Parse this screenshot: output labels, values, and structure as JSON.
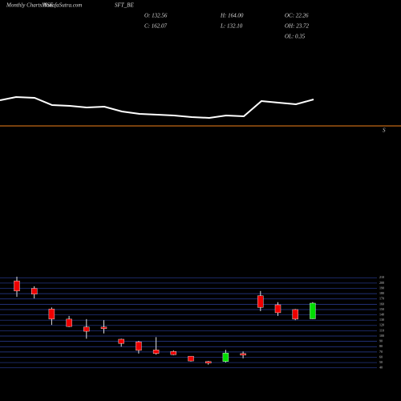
{
  "chart_data": {
    "type": "candlestick",
    "title": "Monthly Charts NSE",
    "site": "MunafaSutra.com",
    "symbol": "SFT_BE",
    "stats": [
      "O: 132.56",
      "C: 162.07",
      "H: 164.00",
      "L: 132.10",
      "OC: 22.26",
      "OH: 23.72",
      "OL: 0.35"
    ],
    "line_label": "S",
    "open": [
      204,
      190,
      151,
      132,
      117,
      117,
      94,
      89,
      74,
      71,
      62,
      52,
      52,
      67,
      176,
      159,
      150,
      132.56
    ],
    "high": [
      212,
      194,
      154,
      138,
      132,
      130,
      95,
      91,
      98,
      73,
      62,
      53,
      74,
      71,
      185,
      164,
      151,
      164
    ],
    "low": [
      174,
      171,
      121,
      117,
      95,
      105,
      80,
      67,
      65,
      64,
      52,
      46,
      50,
      58,
      147,
      138,
      130,
      132.1
    ],
    "close": [
      185,
      179,
      132,
      118,
      109,
      114,
      86,
      73,
      67,
      65,
      53,
      49,
      68,
      64,
      154,
      144,
      132,
      162.07
    ],
    "up_color": "#00dd00",
    "down_color": "#ee0000",
    "ylim": [
      38,
      212
    ],
    "yticks": [
      40,
      50,
      60,
      70,
      80,
      90,
      100,
      110,
      120,
      130,
      140,
      150,
      160,
      170,
      180,
      190,
      200,
      210
    ],
    "grid": true
  }
}
